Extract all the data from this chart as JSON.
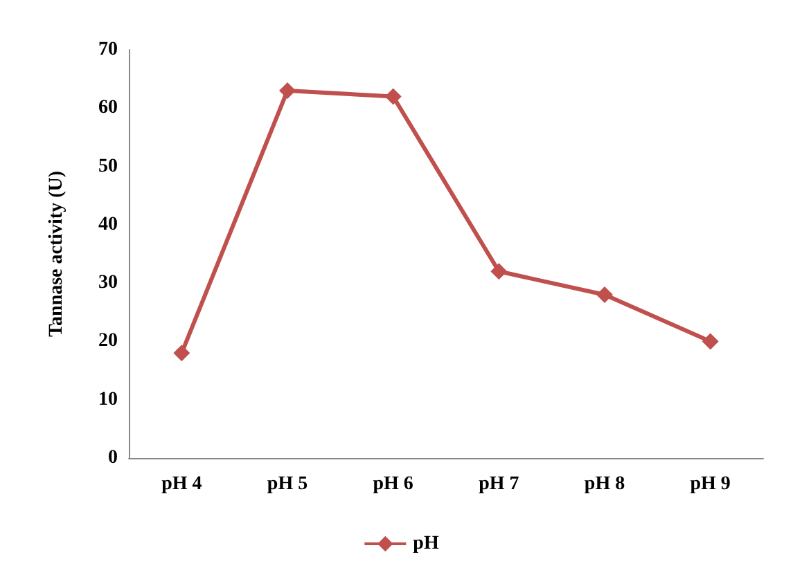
{
  "chart_data": {
    "type": "line",
    "ylabel": "Tannase activity (U)",
    "categories": [
      "pH 4",
      "pH 5",
      "pH 6",
      "pH 7",
      "pH 8",
      "pH 9"
    ],
    "series": [
      {
        "name": "pH",
        "color": "#c0504d",
        "values": [
          18,
          63,
          62,
          32,
          28,
          20
        ]
      }
    ],
    "ylim": [
      0,
      70
    ],
    "yticks": [
      0,
      10,
      20,
      30,
      40,
      50,
      60,
      70
    ],
    "grid": false,
    "legend": "bottom",
    "marker": "diamond",
    "line_style": "solid"
  }
}
